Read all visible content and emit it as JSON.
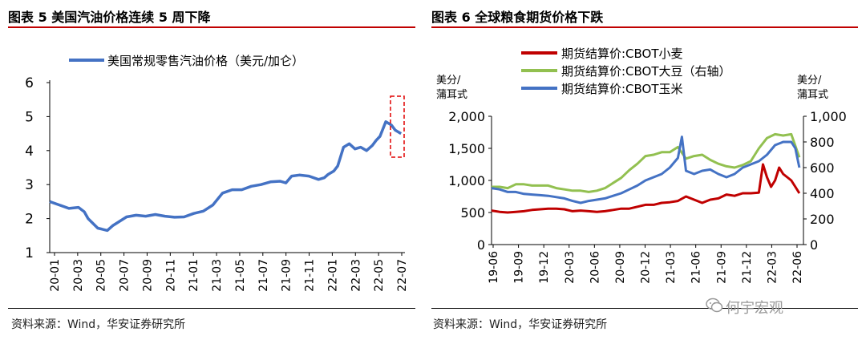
{
  "left_panel": {
    "title": "图表 5  美国汽油价格连续 5 周下降",
    "source": "资料来源：Wind，华安证券研究所"
  },
  "right_panel": {
    "title": "图表 6  全球粮食期货价格下跌",
    "source": "资料来源：Wind，华安证券研究所"
  },
  "watermark": {
    "text": "何宇宏观",
    "icon": "wechat-icon"
  },
  "chart_data": [
    {
      "type": "line",
      "title": "图表 5  美国汽油价格连续 5 周下降",
      "ylim": [
        1,
        6
      ],
      "yticks": [
        "1",
        "2",
        "3",
        "4",
        "5",
        "6"
      ],
      "x_tick_labels": [
        "20-01",
        "20-03",
        "20-05",
        "20-07",
        "20-09",
        "20-11",
        "21-01",
        "21-03",
        "21-05",
        "21-07",
        "21-09",
        "21-11",
        "22-01",
        "22-03",
        "22-05",
        "22-07"
      ],
      "x_range_months": [
        0,
        18.5
      ],
      "grid": false,
      "legend_position": "top",
      "annotation": "red dashed box around recent decline",
      "series": [
        {
          "name": "美国常规零售汽油价格（美元/加仑）",
          "color": "#4472c4",
          "x": [
            0,
            0.5,
            1,
            1.5,
            1.8,
            2.0,
            2.5,
            3.0,
            3.3,
            3.5,
            4,
            4.5,
            5,
            5.5,
            6,
            6.5,
            7,
            7.5,
            8,
            8.5,
            9,
            9.5,
            10,
            10.5,
            11,
            11.5,
            12,
            12.3,
            12.6,
            13,
            13.5,
            14,
            14.3,
            14.5,
            14.8,
            15,
            15.3,
            15.6,
            15.9,
            16.2,
            16.5,
            16.8,
            17.0,
            17.2,
            17.5,
            17.8,
            18.0,
            18.3
          ],
          "values": [
            2.5,
            2.4,
            2.3,
            2.33,
            2.2,
            2.0,
            1.72,
            1.65,
            1.8,
            1.87,
            2.05,
            2.1,
            2.07,
            2.12,
            2.07,
            2.04,
            2.05,
            2.15,
            2.22,
            2.4,
            2.75,
            2.85,
            2.85,
            2.95,
            3.0,
            3.08,
            3.1,
            3.05,
            3.25,
            3.28,
            3.25,
            3.15,
            3.2,
            3.3,
            3.4,
            3.55,
            4.1,
            4.2,
            4.05,
            4.1,
            4.0,
            4.15,
            4.3,
            4.42,
            4.85,
            4.75,
            4.6,
            4.5
          ]
        }
      ]
    },
    {
      "type": "line",
      "title": "图表 6  全球粮食期货价格下跌",
      "ylabel_left": "美分/蒲耳式",
      "ylabel_right": "美分/蒲耳式",
      "ylim_left": [
        0,
        2000
      ],
      "ylim_right": [
        0,
        1000
      ],
      "yticks_left": [
        "0",
        "500",
        "1,000",
        "1,500",
        "2,000"
      ],
      "yticks_right": [
        "0",
        "200",
        "400",
        "600",
        "800",
        "1,000"
      ],
      "x_tick_labels": [
        "19-06",
        "19-09",
        "19-12",
        "20-03",
        "20-06",
        "20-09",
        "20-12",
        "21-03",
        "21-06",
        "21-09",
        "21-12",
        "22-03",
        "22-06"
      ],
      "x_range_months": [
        0,
        38.5
      ],
      "grid": false,
      "legend_position": "top",
      "series": [
        {
          "name": "期货结算价:CBOT小麦",
          "axis": "left",
          "color": "#c00000",
          "x": [
            0,
            1,
            2,
            3,
            4,
            5,
            6,
            7,
            8,
            9,
            10,
            11,
            12,
            13,
            14,
            15,
            16,
            17,
            18,
            19,
            20,
            21,
            22,
            23,
            24,
            25,
            26,
            27,
            28,
            29,
            30,
            31,
            32,
            33,
            33.5,
            34,
            34.5,
            35,
            35.5,
            36,
            36.5,
            37,
            37.5,
            38
          ],
          "values": [
            530,
            510,
            500,
            510,
            520,
            540,
            550,
            560,
            560,
            550,
            520,
            530,
            520,
            510,
            520,
            540,
            560,
            560,
            590,
            620,
            620,
            650,
            660,
            680,
            750,
            700,
            650,
            700,
            720,
            780,
            760,
            800,
            800,
            810,
            1250,
            1050,
            900,
            1000,
            1200,
            1100,
            1050,
            1000,
            900,
            800
          ]
        },
        {
          "name": "期货结算价:CBOT大豆（右轴）",
          "axis": "right",
          "color": "#92c050",
          "x": [
            0,
            1,
            2,
            3,
            4,
            5,
            6,
            7,
            8,
            9,
            10,
            11,
            12,
            13,
            14,
            15,
            16,
            17,
            18,
            19,
            20,
            21,
            22,
            23,
            24,
            25,
            26,
            27,
            28,
            29,
            30,
            31,
            32,
            33,
            34,
            35,
            36,
            37,
            38
          ],
          "values": [
            450,
            450,
            440,
            470,
            470,
            460,
            460,
            460,
            440,
            430,
            420,
            420,
            410,
            420,
            440,
            480,
            520,
            580,
            630,
            690,
            700,
            720,
            720,
            760,
            670,
            690,
            700,
            660,
            630,
            610,
            600,
            620,
            650,
            750,
            830,
            860,
            850,
            860,
            680
          ]
        },
        {
          "name": "期货结算价:CBOT玉米",
          "axis": "left",
          "color": "#4472c4",
          "x": [
            0,
            1,
            2,
            3,
            4,
            5,
            6,
            7,
            8,
            9,
            10,
            11,
            12,
            13,
            14,
            15,
            16,
            17,
            18,
            19,
            20,
            21,
            22,
            23,
            23.5,
            24,
            25,
            26,
            27,
            28,
            29,
            30,
            31,
            32,
            33,
            34,
            35,
            36,
            37,
            37.5,
            38
          ],
          "values": [
            880,
            860,
            820,
            820,
            790,
            780,
            770,
            760,
            740,
            720,
            680,
            650,
            680,
            700,
            720,
            760,
            800,
            860,
            920,
            1000,
            1050,
            1100,
            1200,
            1350,
            1680,
            1150,
            1100,
            1150,
            1170,
            1100,
            1050,
            1100,
            1200,
            1250,
            1300,
            1400,
            1550,
            1600,
            1600,
            1500,
            1200
          ]
        }
      ]
    }
  ]
}
